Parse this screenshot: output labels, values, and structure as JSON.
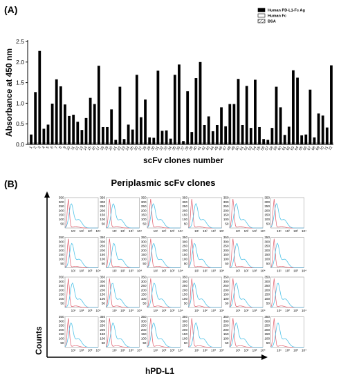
{
  "chart_data": [
    {
      "type": "bar",
      "panel_label": "(A)",
      "ylabel": "Absorbance at 450 nm",
      "xlabel": "scFv clones number",
      "ylim": [
        0,
        2.5
      ],
      "yticks": [
        "0.0",
        "0.5",
        "1.0",
        "1.5",
        "2.0",
        "2.5"
      ],
      "legend_position": "top-right",
      "legend": [
        {
          "name": "Human PD-L1-Fc Ag",
          "fill": "#000000"
        },
        {
          "name": "Human Fc",
          "fill": "#ffffff"
        },
        {
          "name": "BSA",
          "fill": "hatch"
        }
      ],
      "categories": [
        "1",
        "2",
        "3",
        "4",
        "5",
        "6",
        "7",
        "8",
        "9",
        "10",
        "11",
        "12",
        "13",
        "14",
        "15",
        "16",
        "17",
        "18",
        "19",
        "20",
        "21",
        "22",
        "23",
        "24",
        "25",
        "26",
        "27",
        "28",
        "29",
        "30",
        "31",
        "32",
        "33",
        "34",
        "35",
        "36",
        "37",
        "38",
        "39",
        "40",
        "41",
        "42",
        "43",
        "44",
        "45",
        "46",
        "47",
        "48",
        "49",
        "50",
        "51",
        "52",
        "53",
        "54",
        "55",
        "56",
        "57",
        "58",
        "59",
        "60",
        "61",
        "62",
        "63",
        "64",
        "65",
        "66",
        "67",
        "68",
        "69",
        "70",
        "71",
        "72"
      ],
      "series": [
        {
          "name": "Human PD-L1-Fc Ag",
          "values": [
            0.24,
            1.27,
            2.27,
            0.38,
            0.48,
            0.99,
            1.58,
            1.41,
            0.97,
            0.69,
            0.72,
            0.55,
            0.35,
            0.64,
            1.13,
            0.98,
            1.91,
            0.42,
            0.42,
            0.85,
            0.11,
            1.4,
            0.13,
            0.48,
            0.36,
            1.69,
            0.66,
            1.09,
            0.17,
            0.16,
            1.79,
            0.33,
            0.34,
            0.14,
            1.69,
            1.94,
            0.08,
            1.29,
            0.3,
            1.61,
            2.0,
            0.47,
            0.68,
            0.32,
            0.47,
            0.9,
            0.44,
            0.98,
            0.98,
            1.59,
            0.47,
            1.42,
            0.4,
            1.57,
            0.42,
            0.13,
            0.11,
            0.4,
            1.4,
            0.9,
            0.23,
            0.43,
            1.8,
            1.62,
            0.22,
            0.24,
            1.33,
            0.17,
            0.75,
            0.7,
            0.41,
            1.92
          ]
        },
        {
          "name": "Human Fc",
          "values": [
            0.05,
            0.05,
            0.05,
            0.05,
            0.05,
            0.05,
            0.05,
            0.05,
            0.05,
            0.05,
            0.05,
            0.05,
            0.05,
            0.05,
            0.05,
            0.05,
            0.05,
            0.05,
            0.05,
            0.05,
            0.05,
            0.05,
            0.05,
            0.05,
            0.05,
            0.05,
            0.05,
            0.05,
            0.05,
            0.05,
            0.05,
            0.05,
            0.05,
            0.05,
            0.05,
            0.05,
            0.05,
            0.05,
            0.05,
            0.05,
            0.05,
            0.05,
            0.05,
            0.05,
            0.05,
            0.05,
            0.05,
            0.05,
            0.05,
            0.05,
            0.05,
            0.05,
            0.05,
            0.05,
            0.05,
            0.05,
            0.05,
            0.05,
            0.05,
            0.05,
            0.05,
            0.05,
            0.05,
            0.05,
            0.05,
            0.05,
            0.05,
            0.05,
            0.05,
            0.05,
            0.05,
            0.05
          ]
        },
        {
          "name": "BSA",
          "values": [
            0.05,
            0.05,
            0.05,
            0.05,
            0.05,
            0.05,
            0.05,
            0.05,
            0.05,
            0.05,
            0.05,
            0.05,
            0.05,
            0.05,
            0.05,
            0.05,
            0.05,
            0.05,
            0.05,
            0.05,
            0.05,
            0.05,
            0.05,
            0.05,
            0.05,
            0.05,
            0.05,
            0.05,
            0.05,
            0.05,
            0.05,
            0.05,
            0.05,
            0.05,
            0.05,
            0.05,
            0.05,
            0.05,
            0.05,
            0.05,
            0.05,
            0.05,
            0.05,
            0.05,
            0.05,
            0.05,
            0.05,
            0.05,
            0.05,
            0.05,
            0.05,
            0.05,
            0.05,
            0.05,
            0.05,
            0.05,
            0.05,
            0.05,
            0.05,
            0.05,
            0.05,
            0.05,
            0.05,
            0.05,
            0.05,
            0.05,
            0.05,
            0.05,
            0.05,
            0.05,
            0.05,
            0.05
          ]
        }
      ]
    },
    {
      "type": "histogram-grid",
      "panel_label": "(B)",
      "title": "Periplasmic scFv clones",
      "ylabel": "Counts",
      "xlabel": "hPD-L1",
      "grid": {
        "rows": 4,
        "cols": 6
      },
      "yticks": [
        "0",
        "50",
        "100",
        "150",
        "200",
        "250",
        "300",
        "350"
      ],
      "xticks": [
        "10⁰",
        "10¹",
        "10²",
        "10³",
        "10⁴"
      ],
      "ylim": [
        0,
        350
      ],
      "series_colors": {
        "control": "#e05a6a",
        "sample": "#4fc3e8"
      },
      "sample_peak_shift": [
        1.1,
        1.25,
        1.05,
        1.3,
        1.15,
        1.0,
        1.2,
        1.35,
        1.1,
        1.05,
        1.25,
        1.15,
        1.3,
        1.1,
        1.2,
        1.0,
        1.15,
        1.25,
        1.05,
        1.2,
        1.1,
        1.3,
        1.15,
        1.25
      ]
    }
  ],
  "colors": {
    "bar": "#000000",
    "axis": "#000000",
    "threshold": "#bbbbbb"
  }
}
